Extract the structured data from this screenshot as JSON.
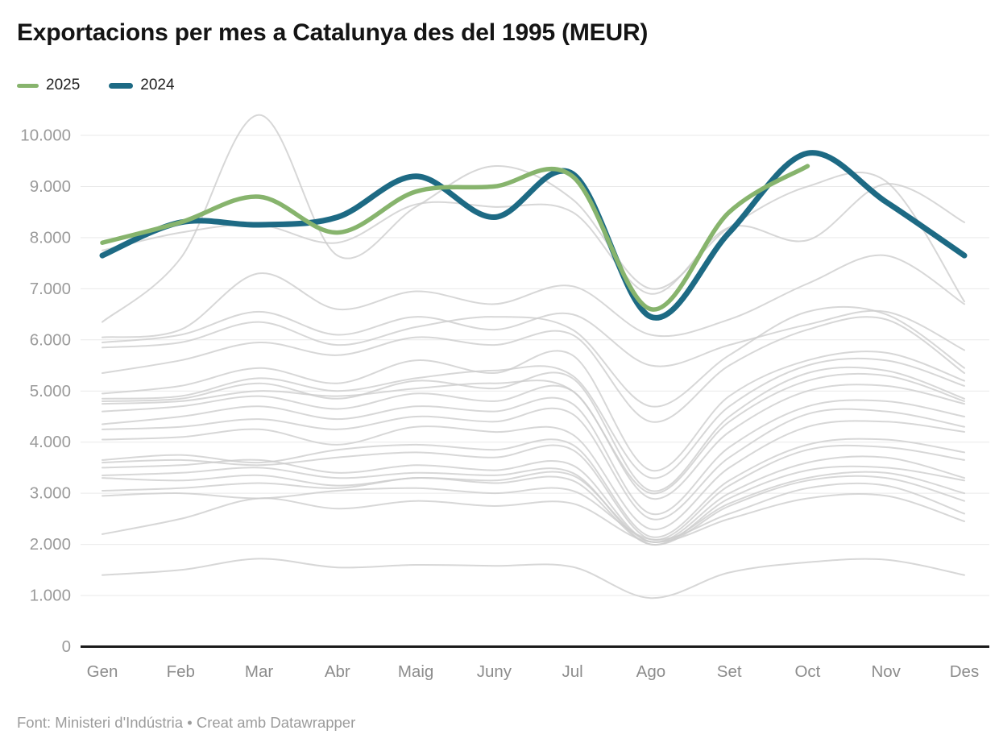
{
  "footer": {
    "text": "Font: Ministeri d'Indústria • Creat amb Datawrapper"
  },
  "chart_data": {
    "type": "line",
    "title": "Exportacions per mes a Catalunya des del 1995 (MEUR)",
    "xlabel": "",
    "ylabel": "",
    "legend_position": "top-left",
    "grid": "horizontal",
    "categories": [
      "Gen",
      "Feb",
      "Mar",
      "Abr",
      "Maig",
      "Juny",
      "Jul",
      "Ago",
      "Set",
      "Oct",
      "Nov",
      "Des"
    ],
    "y_axis": {
      "min": 0,
      "max": 10000,
      "tick_step": 1000,
      "tick_labels": [
        "0",
        "1.000",
        "2.000",
        "3.000",
        "4.000",
        "5.000",
        "6.000",
        "7.000",
        "8.000",
        "9.000",
        "10.000"
      ]
    },
    "series": [
      {
        "name": "2025",
        "color": "#87b46d",
        "stroke_width": 5.5,
        "values": [
          7900,
          8300,
          8800,
          8100,
          8900,
          9000,
          9200,
          6600,
          8500,
          9400
        ]
      },
      {
        "name": "2024",
        "color": "#1d6a84",
        "stroke_width": 7,
        "values": [
          7650,
          8300,
          8250,
          8400,
          9200,
          8400,
          9250,
          6450,
          8100,
          9650,
          8700,
          7650
        ]
      }
    ],
    "unlabeled_background_series": {
      "color": "#cdcdcd",
      "stroke_width": 2,
      "opacity": 0.8,
      "values": [
        [
          6350,
          7600,
          10400,
          7650,
          8600,
          9400,
          8750,
          7000,
          8200,
          9000,
          9100,
          6750
        ],
        [
          7750,
          8100,
          8250,
          7900,
          8650,
          8600,
          8500,
          6900,
          8200,
          7950,
          9050,
          8300
        ],
        [
          6050,
          6200,
          7300,
          6600,
          6950,
          6700,
          7050,
          6100,
          6400,
          7100,
          7650,
          6700
        ],
        [
          5950,
          6100,
          6550,
          6100,
          6450,
          6200,
          6500,
          5500,
          5900,
          6300,
          6550,
          5800
        ],
        [
          5850,
          5950,
          6350,
          5900,
          6250,
          6450,
          6200,
          4700,
          5700,
          6550,
          6500,
          5450
        ],
        [
          5350,
          5600,
          5950,
          5700,
          6050,
          5900,
          6100,
          4400,
          5500,
          6200,
          6400,
          5350
        ],
        [
          4950,
          5100,
          5450,
          5150,
          5600,
          5350,
          5700,
          3450,
          4900,
          5600,
          5750,
          5200
        ],
        [
          4850,
          4900,
          5250,
          5000,
          5250,
          5400,
          5300,
          3300,
          4700,
          5500,
          5600,
          5100
        ],
        [
          4800,
          4850,
          5150,
          4850,
          5200,
          5050,
          5250,
          3050,
          4500,
          5350,
          5400,
          4850
        ],
        [
          4750,
          4800,
          5000,
          4900,
          5050,
          5150,
          5000,
          3000,
          4400,
          5200,
          5300,
          4800
        ],
        [
          4600,
          4700,
          4900,
          4650,
          4950,
          4800,
          5000,
          2900,
          4200,
          5000,
          5100,
          4750
        ],
        [
          4350,
          4500,
          4700,
          4450,
          4700,
          4600,
          4750,
          2600,
          3900,
          4700,
          4800,
          4500
        ],
        [
          4250,
          4300,
          4450,
          4250,
          4500,
          4400,
          4550,
          2500,
          3700,
          4550,
          4600,
          4300
        ],
        [
          4050,
          4100,
          4250,
          3950,
          4300,
          4200,
          4150,
          2300,
          3500,
          4300,
          4400,
          4200
        ],
        [
          3650,
          3750,
          3600,
          3850,
          3950,
          3850,
          3950,
          2150,
          3250,
          3950,
          4050,
          3800
        ],
        [
          3600,
          3650,
          3550,
          3700,
          3800,
          3700,
          3850,
          2100,
          3150,
          3850,
          3900,
          3650
        ],
        [
          3500,
          3550,
          3650,
          3400,
          3550,
          3450,
          3550,
          2050,
          3000,
          3600,
          3700,
          3300
        ],
        [
          3350,
          3400,
          3500,
          3300,
          3400,
          3350,
          3400,
          2000,
          2900,
          3450,
          3500,
          3250
        ],
        [
          3300,
          3250,
          3350,
          3150,
          3300,
          3250,
          3350,
          2050,
          2800,
          3300,
          3400,
          3000
        ],
        [
          3050,
          3100,
          3200,
          3100,
          3300,
          3200,
          3250,
          2000,
          2750,
          3250,
          3300,
          2850
        ],
        [
          2950,
          3000,
          2900,
          3050,
          3100,
          3000,
          3050,
          2100,
          2600,
          3100,
          3150,
          2600
        ],
        [
          2200,
          2500,
          2900,
          2700,
          2850,
          2750,
          2800,
          2050,
          2500,
          2900,
          2950,
          2450
        ],
        [
          1400,
          1500,
          1720,
          1550,
          1600,
          1580,
          1560,
          950,
          1450,
          1650,
          1700,
          1400
        ]
      ]
    }
  }
}
